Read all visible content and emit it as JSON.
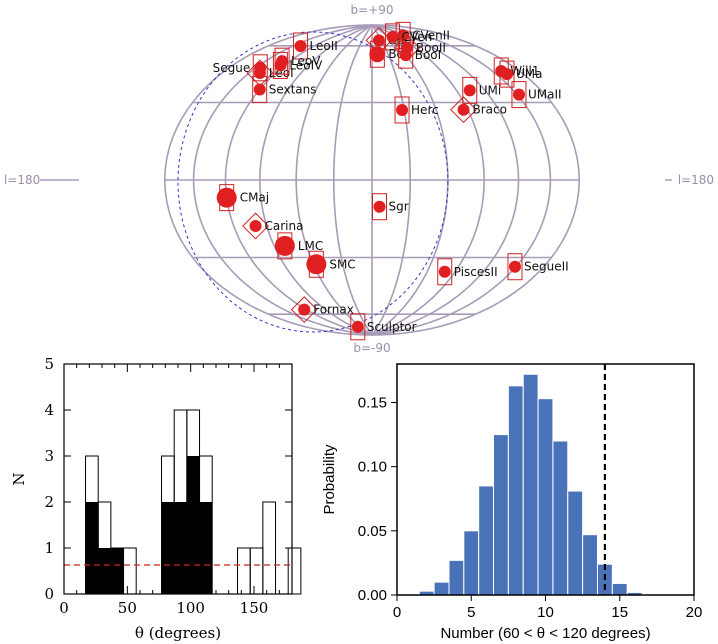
{
  "chart_data": [
    {
      "type": "scatter",
      "projection": "aitoff-hammer galactic",
      "pole_labels": {
        "north": "b=+90",
        "south": "b=-90",
        "left": "l=180",
        "right": "l=180"
      },
      "grid_color": "#a89bb8",
      "point_color": "#e02020",
      "box_color": "#cc2222",
      "great_circle_color": "#3333cc",
      "objects": [
        {
          "name": "CBer",
          "l": 22,
          "b": 79,
          "size": "small"
        },
        {
          "name": "CVenII",
          "l": 112,
          "b": 79,
          "size": "small"
        },
        {
          "name": "CVen",
          "l": 75,
          "b": 80,
          "size": "small"
        },
        {
          "name": "LeoII",
          "l": -140,
          "b": 67,
          "size": "small"
        },
        {
          "name": "Boo",
          "l": 10,
          "b": 70,
          "size": "medium"
        },
        {
          "name": "BooII",
          "l": 75,
          "b": 72,
          "size": "small"
        },
        {
          "name": "BooI",
          "l": 60,
          "b": 68,
          "size": "small"
        },
        {
          "name": "Will1",
          "l": 160,
          "b": 48,
          "size": "small"
        },
        {
          "name": "UMa",
          "l": 162,
          "b": 46,
          "size": "small"
        },
        {
          "name": "Segue",
          "l": -145,
          "b": 52,
          "size": "small"
        },
        {
          "name": "LeoI",
          "l": -138,
          "b": 50,
          "size": "small"
        },
        {
          "name": "LeoV",
          "l": -130,
          "b": 58,
          "size": "small"
        },
        {
          "name": "LeoIV",
          "l": -125,
          "b": 56,
          "size": "small"
        },
        {
          "name": "Sextans",
          "l": -120,
          "b": 43,
          "size": "small"
        },
        {
          "name": "UMi",
          "l": 104,
          "b": 44,
          "size": "small"
        },
        {
          "name": "Braco",
          "l": 86,
          "b": 35,
          "size": "small"
        },
        {
          "name": "UMaII",
          "l": 152,
          "b": 37,
          "size": "small"
        },
        {
          "name": "Herc",
          "l": 28,
          "b": 37,
          "size": "small"
        },
        {
          "name": "CMaj",
          "l": -120,
          "b": -8,
          "size": "large"
        },
        {
          "name": "Sgr",
          "l": 6,
          "b": -14,
          "size": "small"
        },
        {
          "name": "Carina",
          "l": -100,
          "b": -22,
          "size": "small"
        },
        {
          "name": "LMC",
          "l": -80,
          "b": -33,
          "size": "large"
        },
        {
          "name": "SMC",
          "l": -57,
          "b": -44,
          "size": "large"
        },
        {
          "name": "PiscesII",
          "l": 79,
          "b": -47,
          "size": "small"
        },
        {
          "name": "SegueII",
          "l": 149,
          "b": -38,
          "size": "small"
        },
        {
          "name": "Fornax",
          "l": -123,
          "b": -66,
          "size": "small"
        },
        {
          "name": "Sculptor",
          "l": -72,
          "b": -83,
          "size": "small"
        }
      ]
    },
    {
      "type": "bar",
      "xlabel": "θ (degrees)",
      "ylabel": "N",
      "xlim": [
        0,
        180
      ],
      "ylim": [
        0,
        5
      ],
      "xticks": [
        0,
        50,
        100,
        150
      ],
      "yticks": [
        0,
        1,
        2,
        3,
        4,
        5
      ],
      "bin_width": 10,
      "series": [
        {
          "style": "outline",
          "bins": [
            [
              17,
              3
            ],
            [
              27,
              2
            ],
            [
              37,
              1
            ],
            [
              47,
              1
            ],
            [
              77,
              3
            ],
            [
              87,
              4
            ],
            [
              97,
              4
            ],
            [
              107,
              3
            ],
            [
              137,
              1
            ],
            [
              147,
              1
            ],
            [
              157,
              2
            ],
            [
              177,
              1
            ]
          ]
        },
        {
          "style": "filled",
          "bins": [
            [
              17,
              2
            ],
            [
              27,
              1
            ],
            [
              37,
              1
            ],
            [
              77,
              2
            ],
            [
              87,
              2
            ],
            [
              97,
              3
            ],
            [
              107,
              2
            ]
          ]
        }
      ],
      "reference_line": {
        "y": 0.63,
        "color": "#cc2222",
        "style": "dashed"
      }
    },
    {
      "type": "bar",
      "xlabel": "Number (60 < θ < 120 degrees)",
      "ylabel": "Probability",
      "xlim": [
        0,
        20
      ],
      "ylim": [
        0,
        0.18
      ],
      "xticks": [
        0,
        5,
        10,
        15,
        20
      ],
      "yticks": [
        0.0,
        0.05,
        0.1,
        0.15
      ],
      "ytick_labels": [
        "0.00",
        "0.05",
        "0.10",
        "0.15"
      ],
      "bar_color": "#4a72b8",
      "categories": [
        2,
        3,
        4,
        5,
        6,
        7,
        8,
        9,
        10,
        11,
        12,
        13,
        14,
        15,
        16
      ],
      "values": [
        0.003,
        0.01,
        0.027,
        0.05,
        0.085,
        0.125,
        0.163,
        0.172,
        0.153,
        0.12,
        0.081,
        0.047,
        0.024,
        0.009,
        0.002
      ],
      "vline": {
        "x": 14,
        "style": "dashed",
        "color": "#000000"
      }
    }
  ]
}
